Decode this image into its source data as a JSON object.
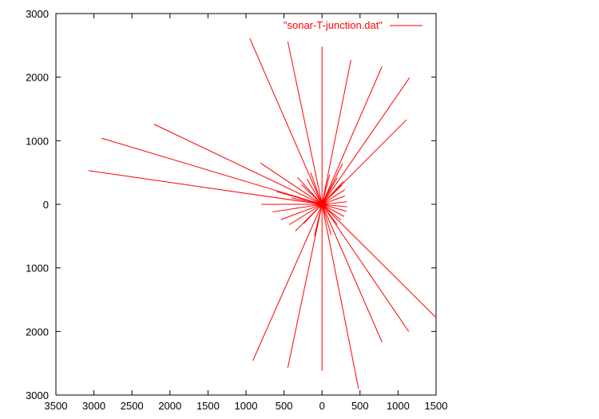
{
  "chart_data": {
    "type": "line",
    "series_name": "\"sonar-T-junction.dat\"",
    "xlim": [
      3500,
      -1500
    ],
    "ylim": [
      3000,
      -3000
    ],
    "x_tick_values": [
      3500,
      3000,
      2500,
      2000,
      1500,
      1000,
      500,
      0,
      -500,
      -1000,
      -1500
    ],
    "x_tick_labels": [
      "3500",
      "3000",
      "2500",
      "2000",
      "1500",
      "1000",
      "500",
      "0",
      "500",
      "1000",
      "1500"
    ],
    "y_tick_values": [
      3000,
      2000,
      1000,
      0,
      -1000,
      -2000,
      -3000
    ],
    "y_tick_labels": [
      "3000",
      "2000",
      "1000",
      "0",
      "1000",
      "2000",
      "3000"
    ],
    "origin": [
      0,
      0
    ],
    "ray_endpoints": [
      [
        0,
        2480
      ],
      [
        -380,
        2270
      ],
      [
        -790,
        2170
      ],
      [
        -1150,
        1990
      ],
      [
        -1110,
        1330
      ],
      [
        -270,
        640
      ],
      [
        -280,
        360
      ],
      [
        -300,
        230
      ],
      [
        -300,
        130
      ],
      [
        -330,
        40
      ],
      [
        -330,
        -40
      ],
      [
        -320,
        -110
      ],
      [
        -290,
        -190
      ],
      [
        -250,
        -250
      ],
      [
        -200,
        -320
      ],
      [
        -1490,
        -1770
      ],
      [
        -1140,
        -2000
      ],
      [
        -790,
        -2170
      ],
      [
        -480,
        -2900
      ],
      [
        0,
        -2620
      ],
      [
        450,
        -2570
      ],
      [
        910,
        -2460
      ],
      [
        350,
        -420
      ],
      [
        430,
        -320
      ],
      [
        540,
        -240
      ],
      [
        650,
        -120
      ],
      [
        800,
        0
      ],
      [
        270,
        310
      ],
      [
        320,
        420
      ],
      [
        810,
        650
      ],
      [
        3070,
        530
      ],
      [
        2900,
        1040
      ],
      [
        2210,
        1260
      ],
      [
        950,
        2610
      ],
      [
        450,
        2560
      ],
      [
        200,
        400
      ],
      [
        150,
        500
      ],
      [
        -100,
        470
      ],
      [
        -200,
        420
      ],
      [
        240,
        -300
      ],
      [
        -120,
        -480
      ],
      [
        100,
        -500
      ],
      [
        600,
        200
      ],
      [
        400,
        100
      ],
      [
        -260,
        300
      ]
    ],
    "color": "#ff0000",
    "legend_position": "top-right",
    "grid": false
  }
}
